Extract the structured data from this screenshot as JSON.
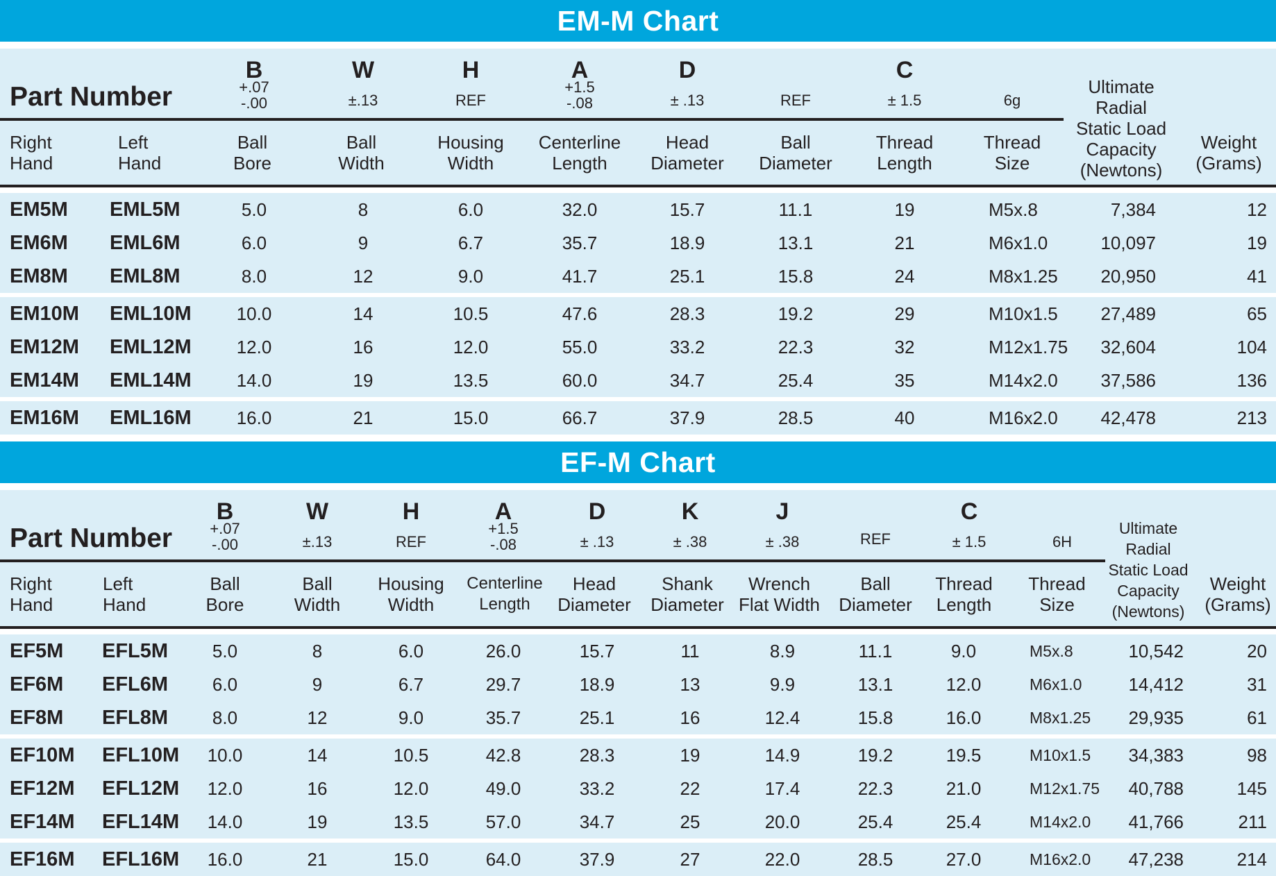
{
  "em": {
    "title": "EM-M Chart",
    "part_number_label": "Part Number",
    "letters": {
      "b": "B",
      "w": "W",
      "h": "H",
      "a": "A",
      "d": "D",
      "c": "C"
    },
    "tolerances": {
      "b1": "+.07",
      "b2": "-.00",
      "w": "±.13",
      "h": "REF",
      "a1": "+1.5",
      "a2": "-.08",
      "d": "± .13",
      "ball": "REF",
      "c": "± 1.5",
      "thread": "6g"
    },
    "labels": {
      "right": [
        "Right",
        "Hand"
      ],
      "left": [
        "Left",
        "Hand"
      ],
      "ball_bore": [
        "Ball",
        "Bore"
      ],
      "ball_width": [
        "Ball",
        "Width"
      ],
      "housing_width": [
        "Housing",
        "Width"
      ],
      "centerline_length": [
        "Centerline",
        "Length"
      ],
      "head_diameter": [
        "Head",
        "Diameter"
      ],
      "ball_diameter": [
        "Ball",
        "Diameter"
      ],
      "thread_length": [
        "Thread",
        "Length"
      ],
      "thread_size": [
        "Thread",
        "Size"
      ],
      "capacity": [
        "Ultimate",
        "Radial",
        "Static Load",
        "Capacity",
        "(Newtons)"
      ],
      "weight": [
        "Weight",
        "(Grams)"
      ]
    },
    "rows": [
      [
        "EM5M",
        "EML5M",
        "5.0",
        "8",
        "6.0",
        "32.0",
        "15.7",
        "11.1",
        "19",
        "M5x.8",
        "7,384",
        "12"
      ],
      [
        "EM6M",
        "EML6M",
        "6.0",
        "9",
        "6.7",
        "35.7",
        "18.9",
        "13.1",
        "21",
        "M6x1.0",
        "10,097",
        "19"
      ],
      [
        "EM8M",
        "EML8M",
        "8.0",
        "12",
        "9.0",
        "41.7",
        "25.1",
        "15.8",
        "24",
        "M8x1.25",
        "20,950",
        "41"
      ],
      [
        "EM10M",
        "EML10M",
        "10.0",
        "14",
        "10.5",
        "47.6",
        "28.3",
        "19.2",
        "29",
        "M10x1.5",
        "27,489",
        "65"
      ],
      [
        "EM12M",
        "EML12M",
        "12.0",
        "16",
        "12.0",
        "55.0",
        "33.2",
        "22.3",
        "32",
        "M12x1.75",
        "32,604",
        "104"
      ],
      [
        "EM14M",
        "EML14M",
        "14.0",
        "19",
        "13.5",
        "60.0",
        "34.7",
        "25.4",
        "35",
        "M14x2.0",
        "37,586",
        "136"
      ],
      [
        "EM16M",
        "EML16M",
        "16.0",
        "21",
        "15.0",
        "66.7",
        "37.9",
        "28.5",
        "40",
        "M16x2.0",
        "42,478",
        "213"
      ]
    ]
  },
  "ef": {
    "title": "EF-M Chart",
    "part_number_label": "Part Number",
    "letters": {
      "b": "B",
      "w": "W",
      "h": "H",
      "a": "A",
      "d": "D",
      "k": "K",
      "j": "J",
      "c": "C"
    },
    "tolerances": {
      "b1": "+.07",
      "b2": "-.00",
      "w": "±.13",
      "h": "REF",
      "a1": "+1.5",
      "a2": "-.08",
      "d": "± .13",
      "k": "± .38",
      "j": "± .38",
      "ball": "REF",
      "c": "± 1.5",
      "thread": "6H"
    },
    "labels": {
      "right": [
        "Right",
        "Hand"
      ],
      "left": [
        "Left",
        "Hand"
      ],
      "ball_bore": [
        "Ball",
        "Bore"
      ],
      "ball_width": [
        "Ball",
        "Width"
      ],
      "housing_width": [
        "Housing",
        "Width"
      ],
      "centerline_length": [
        "Centerline",
        "Length"
      ],
      "head_diameter": [
        "Head",
        "Diameter"
      ],
      "shank_diameter": [
        "Shank",
        "Diameter"
      ],
      "wrench_flat": [
        "Wrench",
        "Flat Width"
      ],
      "ball_diameter": [
        "Ball",
        "Diameter"
      ],
      "thread_length": [
        "Thread",
        "Length"
      ],
      "thread_size": [
        "Thread",
        "Size"
      ],
      "capacity": [
        "Ultimate",
        "Radial",
        "Static Load",
        "Capacity",
        "(Newtons)"
      ],
      "weight": [
        "Weight",
        "(Grams)"
      ]
    },
    "rows": [
      [
        "EF5M",
        "EFL5M",
        "5.0",
        "8",
        "6.0",
        "26.0",
        "15.7",
        "11",
        "8.9",
        "11.1",
        "9.0",
        "M5x.8",
        "10,542",
        "20"
      ],
      [
        "EF6M",
        "EFL6M",
        "6.0",
        "9",
        "6.7",
        "29.7",
        "18.9",
        "13",
        "9.9",
        "13.1",
        "12.0",
        "M6x1.0",
        "14,412",
        "31"
      ],
      [
        "EF8M",
        "EFL8M",
        "8.0",
        "12",
        "9.0",
        "35.7",
        "25.1",
        "16",
        "12.4",
        "15.8",
        "16.0",
        "M8x1.25",
        "29,935",
        "61"
      ],
      [
        "EF10M",
        "EFL10M",
        "10.0",
        "14",
        "10.5",
        "42.8",
        "28.3",
        "19",
        "14.9",
        "19.2",
        "19.5",
        "M10x1.5",
        "34,383",
        "98"
      ],
      [
        "EF12M",
        "EFL12M",
        "12.0",
        "16",
        "12.0",
        "49.0",
        "33.2",
        "22",
        "17.4",
        "22.3",
        "21.0",
        "M12x1.75",
        "40,788",
        "145"
      ],
      [
        "EF14M",
        "EFL14M",
        "14.0",
        "19",
        "13.5",
        "57.0",
        "34.7",
        "25",
        "20.0",
        "25.4",
        "25.4",
        "M14x2.0",
        "41,766",
        "211"
      ],
      [
        "EF16M",
        "EFL16M",
        "16.0",
        "21",
        "15.0",
        "64.0",
        "37.9",
        "27",
        "22.0",
        "28.5",
        "27.0",
        "M16x2.0",
        "47,238",
        "214"
      ]
    ]
  }
}
